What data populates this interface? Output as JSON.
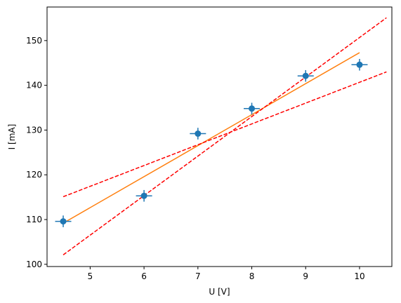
{
  "chart_data": {
    "type": "scatter",
    "title": "",
    "xlabel": "U [V]",
    "ylabel": "I [mA]",
    "xlim": [
      4.2,
      10.6
    ],
    "ylim": [
      99.5,
      157.5
    ],
    "xticks": [
      5,
      6,
      7,
      8,
      9,
      10
    ],
    "yticks": [
      100,
      110,
      120,
      130,
      140,
      150
    ],
    "grid": false,
    "legend": "none",
    "series": [
      {
        "type": "errorbar",
        "color": "#1f77b4",
        "points": [
          {
            "x": 4.5,
            "y": 109.6,
            "xerr": 0.15,
            "yerr": 1.3
          },
          {
            "x": 6.0,
            "y": 115.3,
            "xerr": 0.15,
            "yerr": 1.3
          },
          {
            "x": 7.0,
            "y": 129.2,
            "xerr": 0.15,
            "yerr": 1.3
          },
          {
            "x": 8.0,
            "y": 134.8,
            "xerr": 0.15,
            "yerr": 1.3
          },
          {
            "x": 9.0,
            "y": 142.1,
            "xerr": 0.15,
            "yerr": 1.3
          },
          {
            "x": 10.0,
            "y": 144.6,
            "xerr": 0.15,
            "yerr": 1.3
          }
        ]
      },
      {
        "type": "line",
        "style": "solid",
        "color": "#ff7f0e",
        "x": [
          4.5,
          10.0
        ],
        "y": [
          109.2,
          147.3
        ]
      },
      {
        "type": "line",
        "style": "dashed",
        "color": "#ff0000",
        "x": [
          4.5,
          10.5
        ],
        "y": [
          115.1,
          143.0
        ]
      },
      {
        "type": "line",
        "style": "dashed",
        "color": "#ff0000",
        "x": [
          4.5,
          10.5
        ],
        "y": [
          102.1,
          155.1
        ]
      }
    ]
  }
}
